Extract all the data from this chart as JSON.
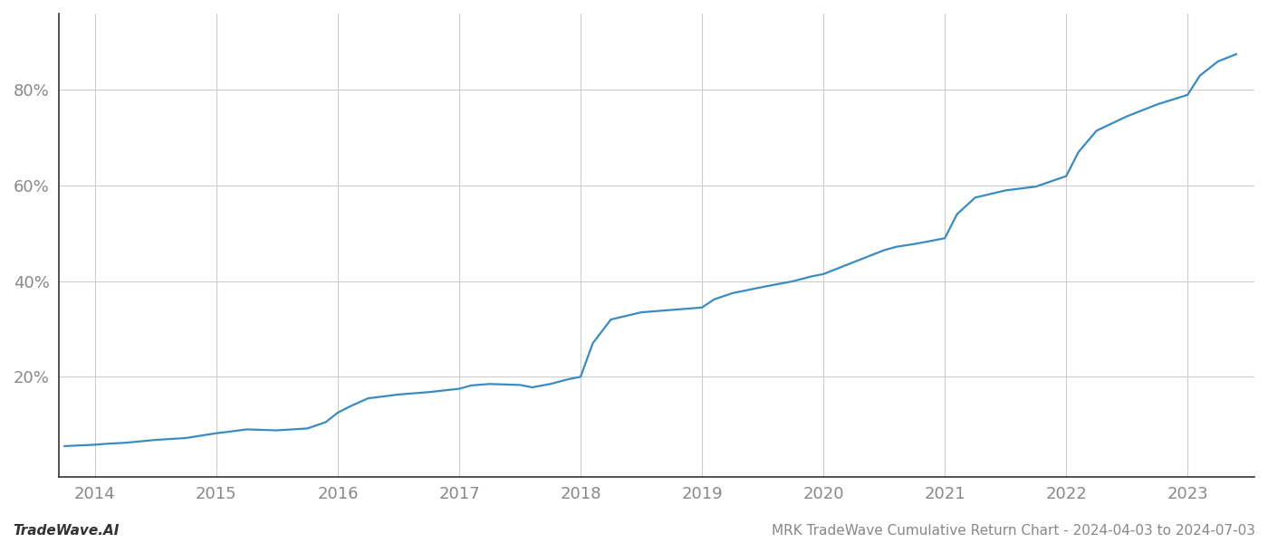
{
  "title": "MRK TradeWave Cumulative Return Chart - 2024-04-03 to 2024-07-03",
  "watermark": "TradeWave.AI",
  "line_color": "#3a8bbf",
  "background_color": "#ffffff",
  "grid_color": "#cccccc",
  "x_years": [
    2014,
    2015,
    2016,
    2017,
    2018,
    2019,
    2020,
    2021,
    2022,
    2023
  ],
  "x_values": [
    2013.75,
    2014.0,
    2014.1,
    2014.25,
    2014.5,
    2014.75,
    2015.0,
    2015.1,
    2015.25,
    2015.5,
    2015.75,
    2015.9,
    2016.0,
    2016.1,
    2016.25,
    2016.5,
    2016.75,
    2017.0,
    2017.1,
    2017.25,
    2017.5,
    2017.6,
    2017.75,
    2017.9,
    2018.0,
    2018.1,
    2018.25,
    2018.5,
    2018.75,
    2019.0,
    2019.1,
    2019.25,
    2019.5,
    2019.75,
    2019.9,
    2020.0,
    2020.1,
    2020.25,
    2020.5,
    2020.6,
    2020.75,
    2020.9,
    2021.0,
    2021.1,
    2021.25,
    2021.5,
    2021.75,
    2022.0,
    2022.1,
    2022.25,
    2022.5,
    2022.75,
    2023.0,
    2023.1,
    2023.25,
    2023.4
  ],
  "y_values": [
    0.055,
    0.058,
    0.06,
    0.062,
    0.068,
    0.072,
    0.082,
    0.085,
    0.09,
    0.088,
    0.092,
    0.105,
    0.125,
    0.138,
    0.155,
    0.163,
    0.168,
    0.175,
    0.182,
    0.185,
    0.183,
    0.178,
    0.185,
    0.195,
    0.2,
    0.27,
    0.32,
    0.335,
    0.34,
    0.345,
    0.362,
    0.375,
    0.388,
    0.4,
    0.41,
    0.415,
    0.425,
    0.44,
    0.465,
    0.472,
    0.478,
    0.485,
    0.49,
    0.54,
    0.575,
    0.59,
    0.598,
    0.62,
    0.67,
    0.715,
    0.745,
    0.77,
    0.79,
    0.83,
    0.86,
    0.875
  ],
  "yticks": [
    0.2,
    0.4,
    0.6,
    0.8
  ],
  "ytick_labels": [
    "20%",
    "40%",
    "60%",
    "80%"
  ],
  "ylim": [
    -0.01,
    0.96
  ],
  "xlim": [
    2013.7,
    2023.55
  ],
  "title_fontsize": 11,
  "watermark_fontsize": 11,
  "tick_fontsize": 13,
  "line_width": 1.6,
  "tick_color": "#888888",
  "spine_color": "#333333"
}
